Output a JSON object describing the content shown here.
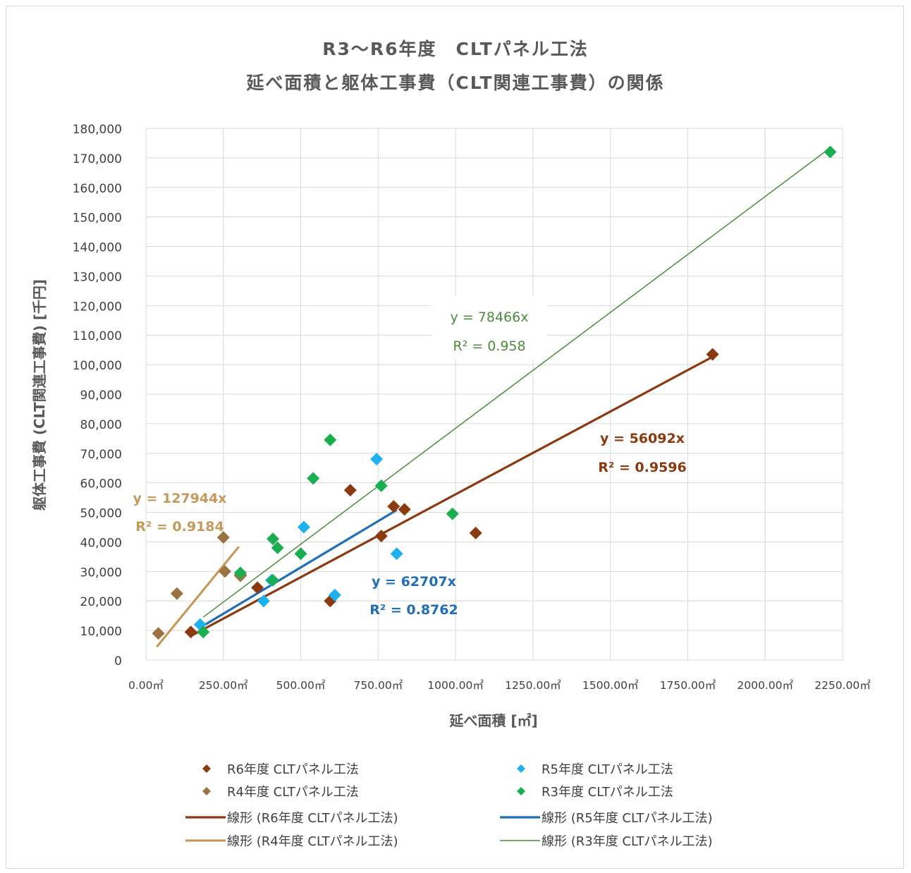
{
  "chart_data": {
    "type": "scatter",
    "title": [
      "R3～R6年度　CLTパネル工法",
      "延べ面積と躯体工事費（CLT関連工事費）の関係"
    ],
    "xlabel": "延べ面積 [㎡]",
    "ylabel": "躯体工事費 (CLT関連工事費) [千円]",
    "xlim": [
      0,
      2250
    ],
    "ylim": [
      0,
      180000
    ],
    "x_ticks": [
      "0.00㎡",
      "250.00㎡",
      "500.00㎡",
      "750.00㎡",
      "1000.00㎡",
      "1250.00㎡",
      "1500.00㎡",
      "1750.00㎡",
      "2000.00㎡",
      "2250.00㎡"
    ],
    "y_ticks": [
      "0",
      "10,000",
      "20,000",
      "30,000",
      "40,000",
      "50,000",
      "60,000",
      "70,000",
      "80,000",
      "90,000",
      "100,000",
      "110,000",
      "120,000",
      "130,000",
      "140,000",
      "150,000",
      "160,000",
      "170,000",
      "180,000"
    ],
    "grid": true,
    "legend_position": "bottom",
    "series": [
      {
        "name": "R6年度 CLTパネル工法",
        "color": "#8B3A10",
        "marker": "diamond",
        "points": [
          [
            145,
            9500
          ],
          [
            360,
            24500
          ],
          [
            305,
            28800
          ],
          [
            595,
            20000
          ],
          [
            660,
            57500
          ],
          [
            760,
            42000
          ],
          [
            800,
            52000
          ],
          [
            835,
            51000
          ],
          [
            1065,
            43000
          ],
          [
            1830,
            103500
          ]
        ],
        "trend": {
          "label": "線形 (R6年度 CLTパネル工法)",
          "slope": 0.0560925,
          "x_range": [
            145,
            1830
          ],
          "equation": "y = 56092x",
          "r2": "R² = 0.9596",
          "color": "#8B3A10",
          "width": 3.2,
          "bold": true
        }
      },
      {
        "name": "R5年度 CLTパネル工法",
        "color": "#1EB1F0",
        "marker": "diamond",
        "points": [
          [
            175,
            12000
          ],
          [
            380,
            20000
          ],
          [
            405,
            27000
          ],
          [
            510,
            45000
          ],
          [
            610,
            22000
          ],
          [
            745,
            68000
          ],
          [
            810,
            36000
          ]
        ],
        "trend": {
          "label": "線形 (R5年度 CLTパネル工法)",
          "slope": 0.062707,
          "x_range": [
            175,
            810
          ],
          "equation": "y = 62707x",
          "r2": "R² = 0.8762",
          "color": "#1F6FB8",
          "width": 3.2,
          "bold": true
        }
      },
      {
        "name": "R4年度 CLTパネル工法",
        "color": "#9A7440",
        "marker": "diamond",
        "points": [
          [
            40,
            9000
          ],
          [
            100,
            22500
          ],
          [
            250,
            41500
          ],
          [
            255,
            30000
          ],
          [
            305,
            28500
          ]
        ],
        "trend": {
          "label": "線形 (R4年度 CLTパネル工法)",
          "slope": 0.127944,
          "x_range": [
            35,
            300
          ],
          "equation": "y = 127944x",
          "r2": "R² = 0.9184",
          "color": "#C49A5A",
          "width": 3.2,
          "bold": true
        }
      },
      {
        "name": "R3年度 CLTパネル工法",
        "color": "#1AAE50",
        "marker": "diamond",
        "points": [
          [
            185,
            9500
          ],
          [
            305,
            29500
          ],
          [
            410,
            41000
          ],
          [
            425,
            38000
          ],
          [
            410,
            27000
          ],
          [
            500,
            36000
          ],
          [
            540,
            61500
          ],
          [
            595,
            74500
          ],
          [
            760,
            59000
          ],
          [
            990,
            49500
          ],
          [
            2210,
            172000
          ]
        ],
        "trend": {
          "label": "線形 (R3年度 CLTパネル工法)",
          "slope": 0.078466,
          "x_range": [
            185,
            2210
          ],
          "equation": "y = 78466x",
          "r2": "R² = 0.958",
          "color": "#4E8B3A",
          "width": 1.5,
          "bold": false
        }
      }
    ]
  }
}
